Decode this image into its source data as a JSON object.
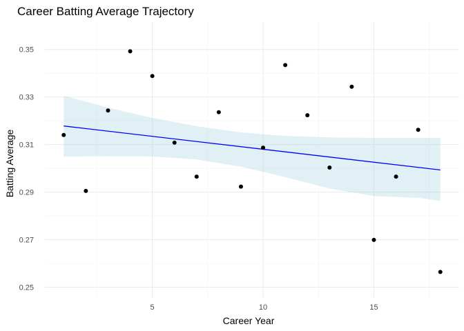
{
  "chart_data": {
    "type": "scatter",
    "title": "Career Batting Average Trajectory",
    "xlabel": "Career Year",
    "ylabel": "Batting Average",
    "xlim": [
      0.15,
      18.85
    ],
    "ylim": [
      0.2455,
      0.3615
    ],
    "x_ticks": [
      5,
      10,
      15
    ],
    "x_minor_ticks": [
      2.5,
      7.5,
      12.5,
      17.5
    ],
    "y_ticks": [
      0.25,
      0.27,
      0.29,
      0.31,
      0.33,
      0.35
    ],
    "y_minor_ticks": [
      0.26,
      0.28,
      0.3,
      0.32,
      0.34
    ],
    "points": [
      {
        "x": 1,
        "y": 0.314
      },
      {
        "x": 2,
        "y": 0.2905
      },
      {
        "x": 3,
        "y": 0.3243
      },
      {
        "x": 4,
        "y": 0.3492
      },
      {
        "x": 5,
        "y": 0.3388
      },
      {
        "x": 6,
        "y": 0.3108
      },
      {
        "x": 7,
        "y": 0.2965
      },
      {
        "x": 8,
        "y": 0.3236
      },
      {
        "x": 9,
        "y": 0.2923
      },
      {
        "x": 10,
        "y": 0.3087
      },
      {
        "x": 11,
        "y": 0.3434
      },
      {
        "x": 12,
        "y": 0.3223
      },
      {
        "x": 13,
        "y": 0.3003
      },
      {
        "x": 14,
        "y": 0.3343
      },
      {
        "x": 15,
        "y": 0.2699
      },
      {
        "x": 16,
        "y": 0.2965
      },
      {
        "x": 17,
        "y": 0.3162
      },
      {
        "x": 18,
        "y": 0.2564
      }
    ],
    "trend_line": {
      "x": [
        1,
        18
      ],
      "y": [
        0.3178,
        0.2993
      ]
    },
    "confidence_band": {
      "x": [
        1,
        3,
        5,
        7,
        9,
        11,
        13,
        15,
        17,
        18
      ],
      "upper": [
        0.3305,
        0.3255,
        0.3212,
        0.3177,
        0.3151,
        0.3136,
        0.313,
        0.3128,
        0.3128,
        0.3128
      ],
      "lower": [
        0.3049,
        0.3051,
        0.305,
        0.3037,
        0.3007,
        0.2963,
        0.2915,
        0.2883,
        0.2876,
        0.2863
      ]
    },
    "grid": true,
    "legend": "none",
    "colors": {
      "point": "#000000",
      "trend_line": "#0000ff",
      "band": "#add8e6",
      "band_opacity": 0.38,
      "grid_major": "#ebebeb",
      "grid_minor": "#f2f2f2"
    }
  }
}
